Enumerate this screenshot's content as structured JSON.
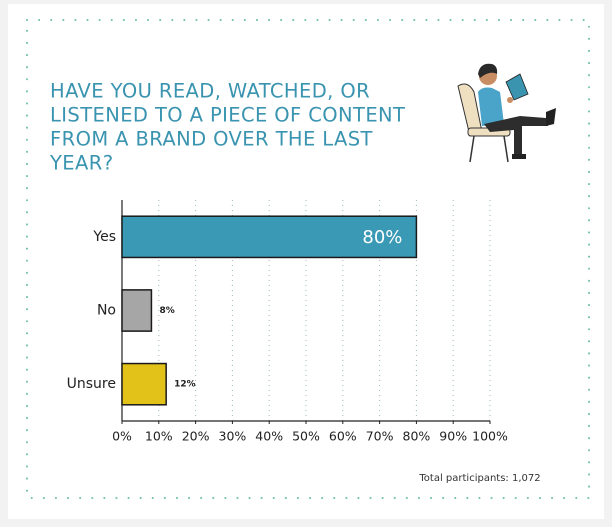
{
  "chart_data": {
    "type": "hbar",
    "title": [
      "HAVE YOU READ, WATCHED, OR",
      "LISTENED TO A PIECE OF CONTENT",
      "FROM A BRAND OVER THE LAST",
      "YEAR?"
    ],
    "categories": [
      "Yes",
      "No",
      "Unsure"
    ],
    "values": [
      80,
      8,
      12
    ],
    "value_labels": [
      "80%",
      "8%",
      "12%"
    ],
    "colors": [
      "#3a9ab6",
      "#a6a6a6",
      "#e2c118"
    ],
    "xlim": [
      0,
      100
    ],
    "xticks": [
      {
        "value": 0,
        "label": "0%"
      },
      {
        "value": 10,
        "label": "10%"
      },
      {
        "value": 20,
        "label": "20%"
      },
      {
        "value": 30,
        "label": "30%"
      },
      {
        "value": 40,
        "label": "40%"
      },
      {
        "value": 50,
        "label": "50%"
      },
      {
        "value": 60,
        "label": "60%"
      },
      {
        "value": 70,
        "label": "70%"
      },
      {
        "value": 80,
        "label": "80%"
      },
      {
        "value": 90,
        "label": "90%"
      },
      {
        "value": 100,
        "label": "100%"
      }
    ],
    "grid": true,
    "note": "Total participants: 1,072"
  }
}
